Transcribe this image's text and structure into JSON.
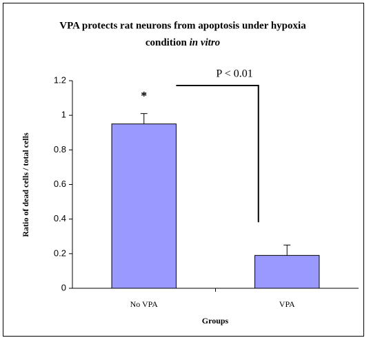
{
  "chart_data": {
    "type": "bar",
    "title": "VPA protects rat neurons from apoptosis under hypoxia",
    "title_line2": "condition",
    "title_italic": "in vitro",
    "xlabel": "Groups",
    "ylabel": "Ratio of dead cells / total cells",
    "categories": [
      "No VPA",
      "VPA"
    ],
    "values": [
      0.95,
      0.19
    ],
    "errors": [
      0.06,
      0.06
    ],
    "color": "#9999ff",
    "ylim": [
      0,
      1.2
    ],
    "yticks": [
      0,
      0.2,
      0.4,
      0.6,
      0.8,
      1,
      1.2
    ],
    "annotations": {
      "star": "*",
      "significance": "P < 0.01"
    },
    "grid": false
  }
}
